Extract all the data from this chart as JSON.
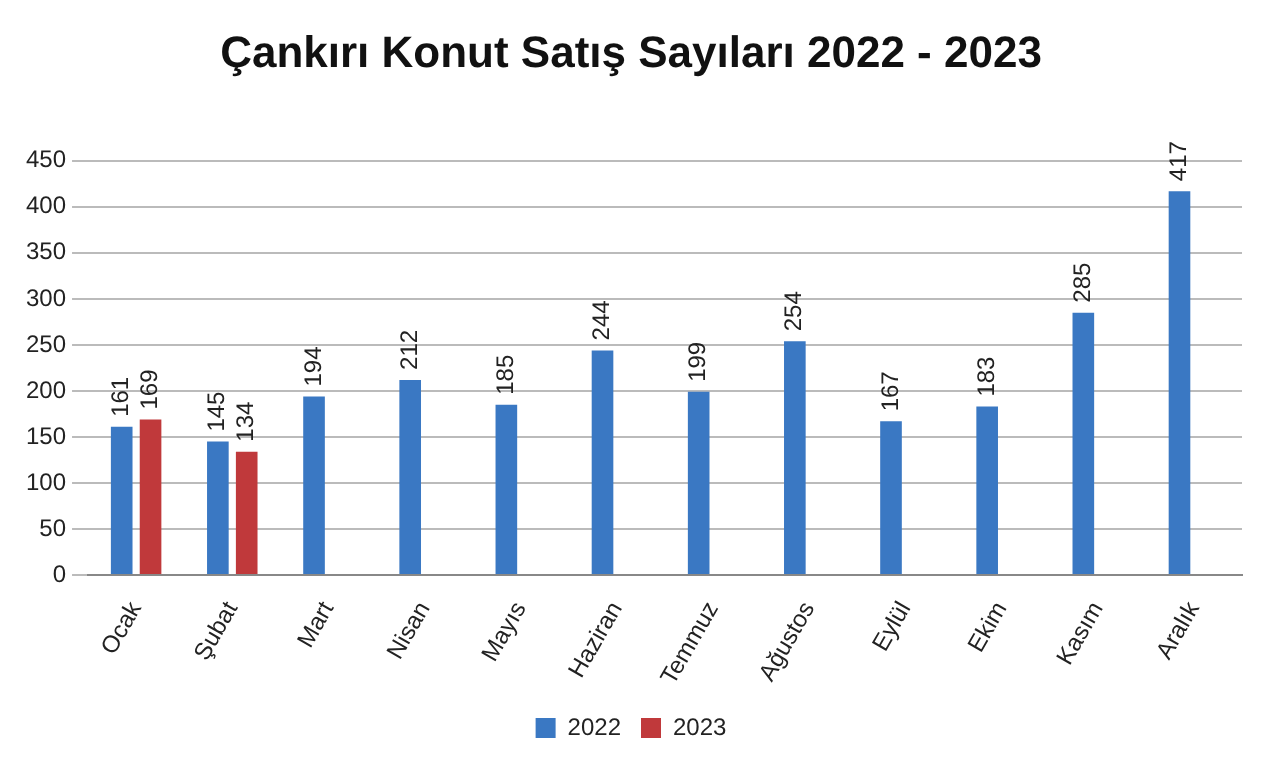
{
  "chart_data": {
    "type": "bar",
    "title": "Çankırı Konut Satış Sayıları 2022 - 2023",
    "categories": [
      "Ocak",
      "Şubat",
      "Mart",
      "Nisan",
      "Mayıs",
      "Haziran",
      "Temmuz",
      "Ağustos",
      "Eylül",
      "Ekim",
      "Kasım",
      "Aralık"
    ],
    "series": [
      {
        "name": "2022",
        "color": "#3a78c3",
        "values": [
          161,
          145,
          194,
          212,
          185,
          244,
          199,
          254,
          167,
          183,
          285,
          417
        ]
      },
      {
        "name": "2023",
        "color": "#c0393b",
        "values": [
          169,
          134,
          null,
          null,
          null,
          null,
          null,
          null,
          null,
          null,
          null,
          null
        ]
      }
    ],
    "ylim": [
      0,
      450
    ],
    "yticks": [
      0,
      50,
      100,
      150,
      200,
      250,
      300,
      350,
      400,
      450
    ],
    "grid": "y",
    "legend": "bottom",
    "data_labels": true
  }
}
